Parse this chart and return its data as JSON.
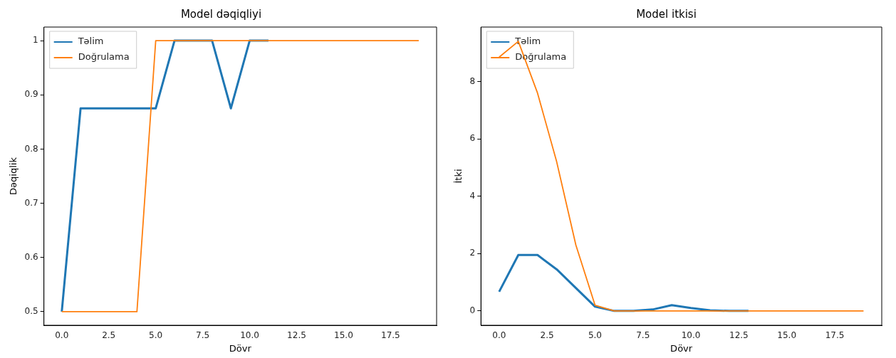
{
  "chart_data": [
    {
      "type": "line",
      "title": "Model dəqiqliyi",
      "xlabel": "Dövr",
      "ylabel": "Dəqiqlik",
      "x": [
        0,
        1,
        2,
        3,
        4,
        5,
        6,
        7,
        8,
        9,
        10,
        11,
        12,
        13,
        14,
        15,
        16,
        17,
        18,
        19
      ],
      "series": [
        {
          "name": "Təlim",
          "color": "#1f77b4",
          "values": [
            0.5,
            0.875,
            0.875,
            0.875,
            0.875,
            0.875,
            1.0,
            1.0,
            1.0,
            0.875,
            1.0,
            1.0,
            null,
            null,
            null,
            null,
            null,
            null,
            null,
            null
          ]
        },
        {
          "name": "Doğrulama",
          "color": "#ff7f0e",
          "values": [
            0.5,
            0.5,
            0.5,
            0.5,
            0.5,
            1.0,
            1.0,
            1.0,
            1.0,
            1.0,
            1.0,
            1.0,
            1.0,
            1.0,
            1.0,
            1.0,
            1.0,
            1.0,
            1.0,
            1.0
          ]
        }
      ],
      "xlim": [
        -0.95,
        19.95
      ],
      "xticks": [
        {
          "value": 0,
          "label": "0.0"
        },
        2.5,
        {
          "value": 5,
          "label": "5.0"
        },
        7.5,
        {
          "value": 10,
          "label": "10.0"
        },
        12.5,
        {
          "value": 15,
          "label": "15.0"
        },
        17.5
      ],
      "ylim": [
        0.475,
        1.025
      ],
      "yticks": [
        0.5,
        0.6,
        0.7,
        0.8,
        0.9,
        1.0
      ],
      "legend": "top left",
      "grid": false
    },
    {
      "type": "line",
      "title": "Model itkisi",
      "xlabel": "Dövr",
      "ylabel": "İtki",
      "x": [
        0,
        1,
        2,
        3,
        4,
        5,
        6,
        7,
        8,
        9,
        10,
        11,
        12,
        13,
        14,
        15,
        16,
        17,
        18,
        19
      ],
      "series": [
        {
          "name": "Təlim",
          "color": "#1f77b4",
          "values": [
            0.67,
            1.95,
            1.95,
            1.45,
            0.8,
            0.15,
            0,
            0,
            0.05,
            0.2,
            0.1,
            0.02,
            0,
            0,
            null,
            null,
            null,
            null,
            null,
            null
          ]
        },
        {
          "name": "Doğrulama",
          "color": "#ff7f0e",
          "values": [
            8.85,
            9.4,
            7.6,
            5.2,
            2.3,
            0.2,
            0,
            0,
            0,
            0,
            0,
            0,
            0,
            0,
            0,
            0,
            0,
            0,
            0,
            0
          ]
        }
      ],
      "xlim": [
        -0.95,
        19.95
      ],
      "xticks": [
        {
          "value": 0,
          "label": "0.0"
        },
        2.5,
        {
          "value": 5,
          "label": "5.0"
        },
        7.5,
        {
          "value": 10,
          "label": "10.0"
        },
        12.5,
        {
          "value": 15,
          "label": "15.0"
        },
        17.5
      ],
      "ylim": [
        -0.5,
        9.9
      ],
      "yticks": [
        0,
        2,
        4,
        6,
        8
      ],
      "legend": "top left",
      "grid": false
    }
  ]
}
